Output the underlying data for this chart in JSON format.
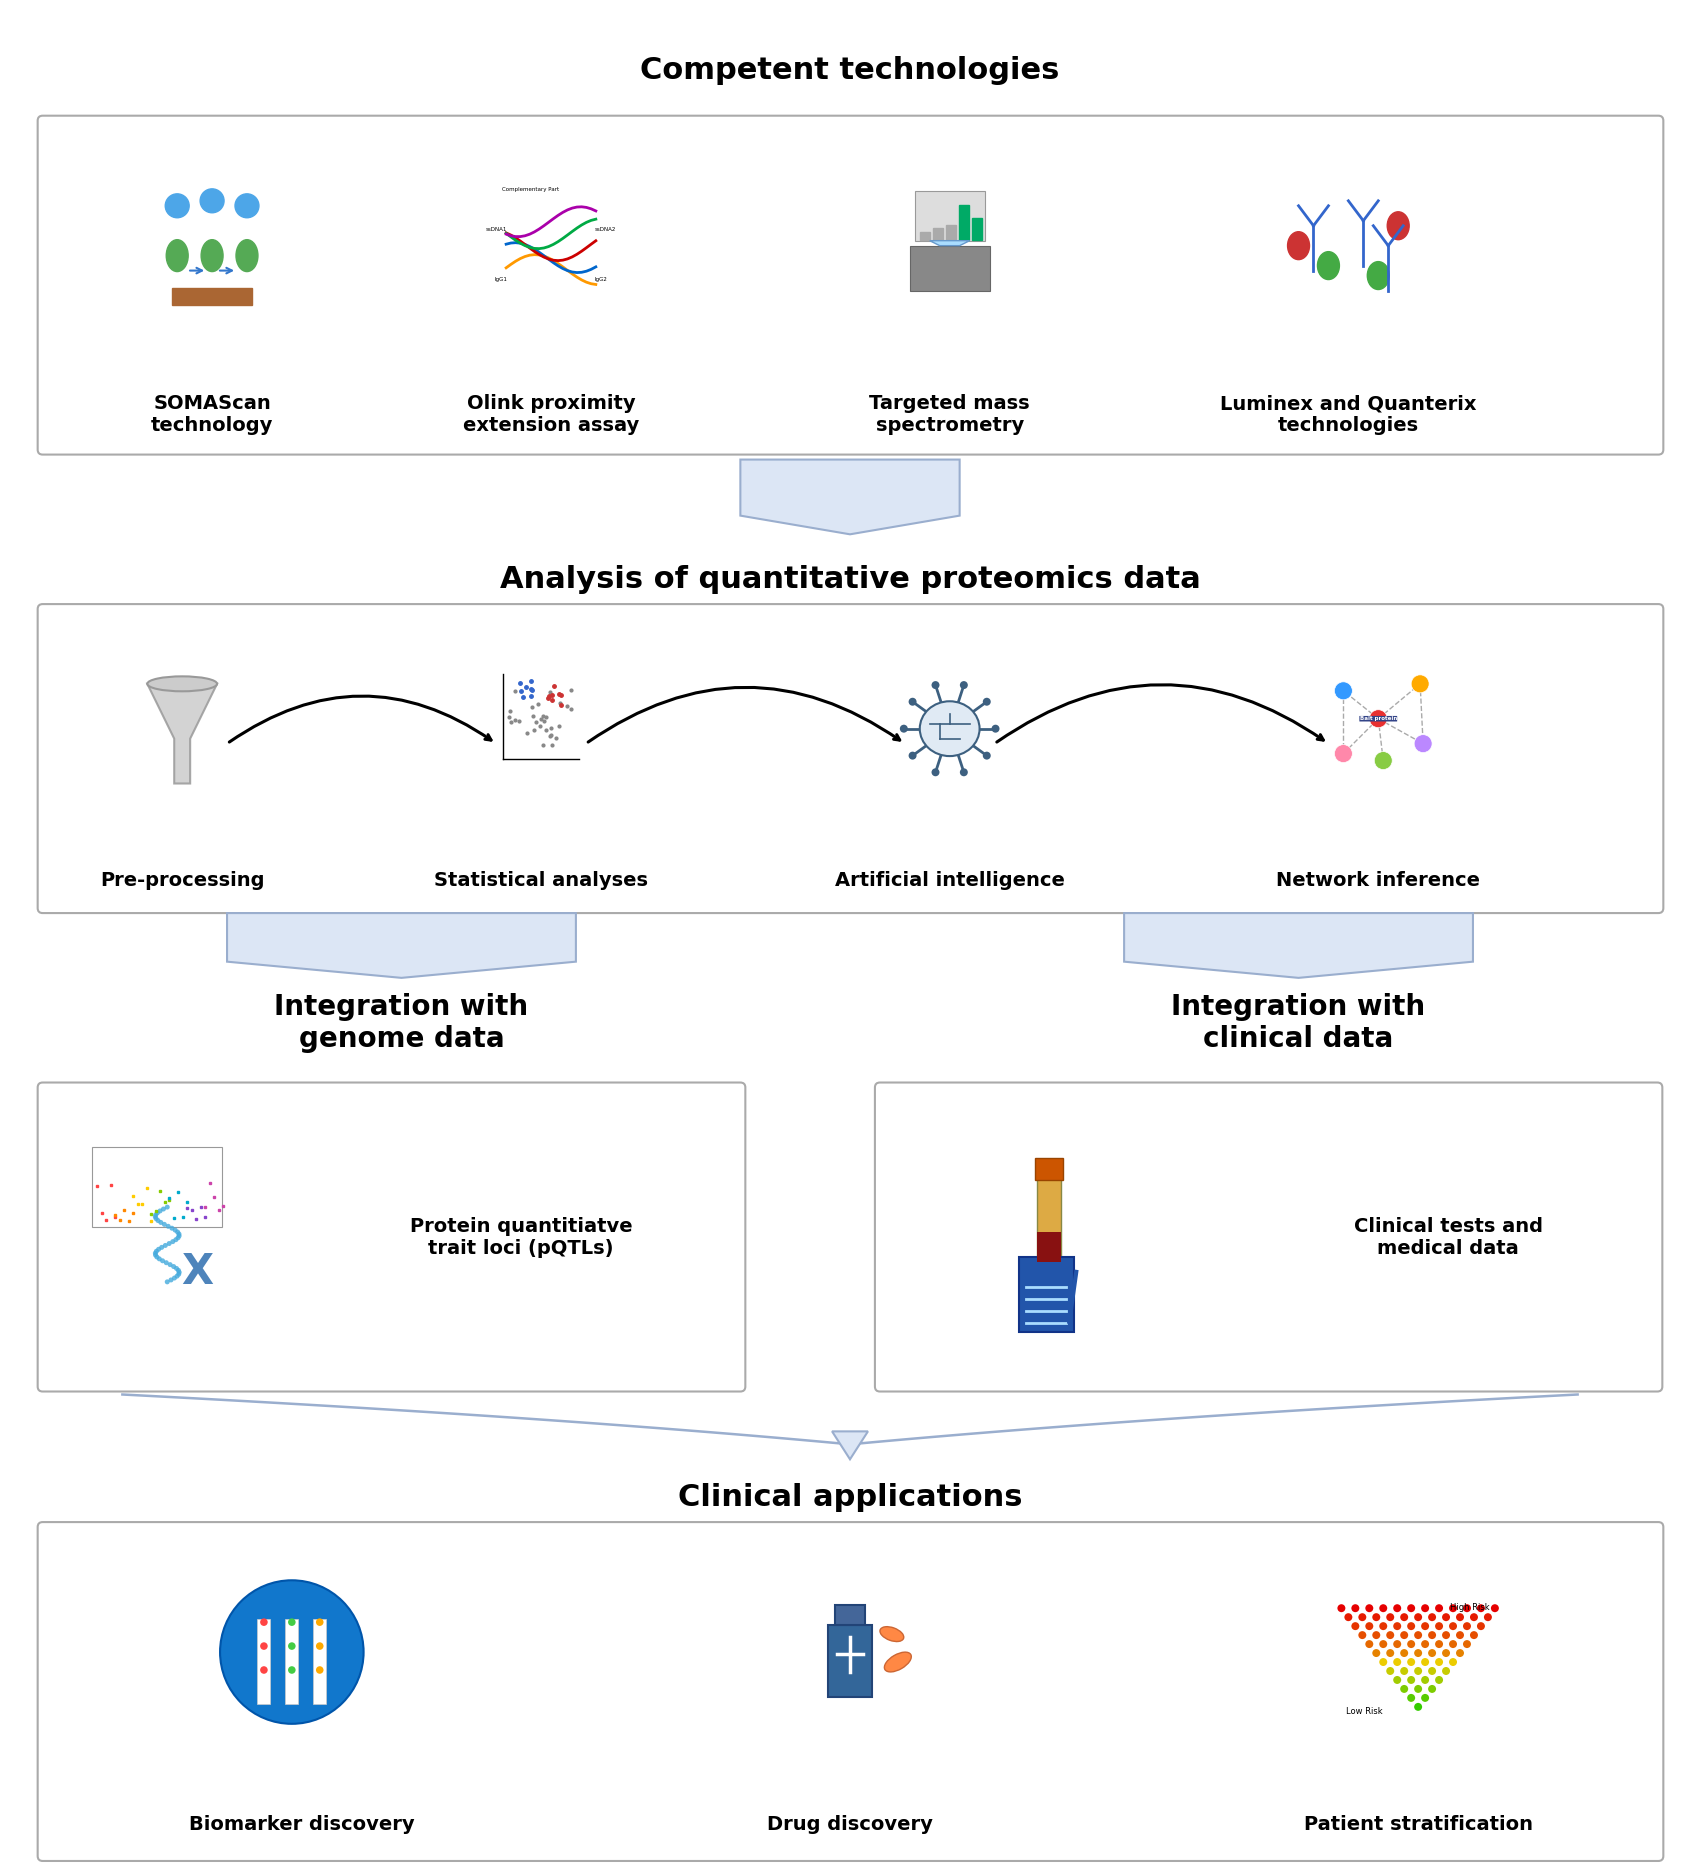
{
  "title_section1": "Competent technologies",
  "title_section2": "Analysis of quantitative proteomics data",
  "title_section3_left": "Integration with\ngenome data",
  "title_section3_right": "Integration with\nclinical data",
  "title_section4": "Clinical applications",
  "section1_items": [
    "SOMAScan\ntechnology",
    "Olink proximity\nextension assay",
    "Targeted mass\nspectrometry",
    "Luminex and Quanterix\ntechnologies"
  ],
  "section2_items": [
    "Pre-processing",
    "Statistical analyses",
    "Artificial intelligence",
    "Network inference"
  ],
  "section3_left_text": "Protein quantitiatve\ntrait loci (pQTLs)",
  "section3_right_text": "Clinical tests and\nmedical data",
  "section4_items": [
    "Biomarker discovery",
    "Drug discovery",
    "Patient stratification"
  ],
  "bg_color": "#ffffff",
  "box_border_color": "#aaaaaa",
  "box_fill_color": "#ffffff",
  "title_color": "#000000",
  "text_color": "#000000",
  "arrow_fill": "#dce6f5",
  "arrow_edge": "#9aaece",
  "font_bold": "bold"
}
